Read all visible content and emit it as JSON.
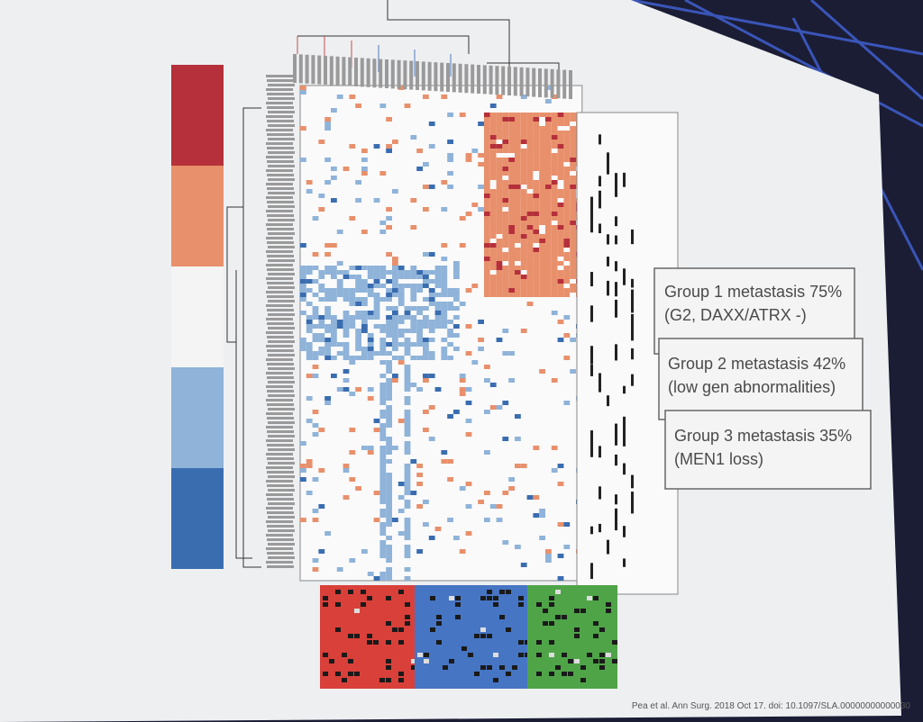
{
  "slide": {
    "boxes": [
      {
        "line1": "Group 1 metastasis 75%",
        "line2": "(G2, DAXX/ATRX -)"
      },
      {
        "line1": "Group 2 metastasis 42%",
        "line2": "(low gen abnormalities)"
      },
      {
        "line1": "Group 3 metastasis 35%",
        "line2": "(MEN1 loss)"
      }
    ],
    "citation": "Pea et al. Ann Surg. 2018 Oct 17. doi: 10.1097/SLA.00000000000030"
  }
}
